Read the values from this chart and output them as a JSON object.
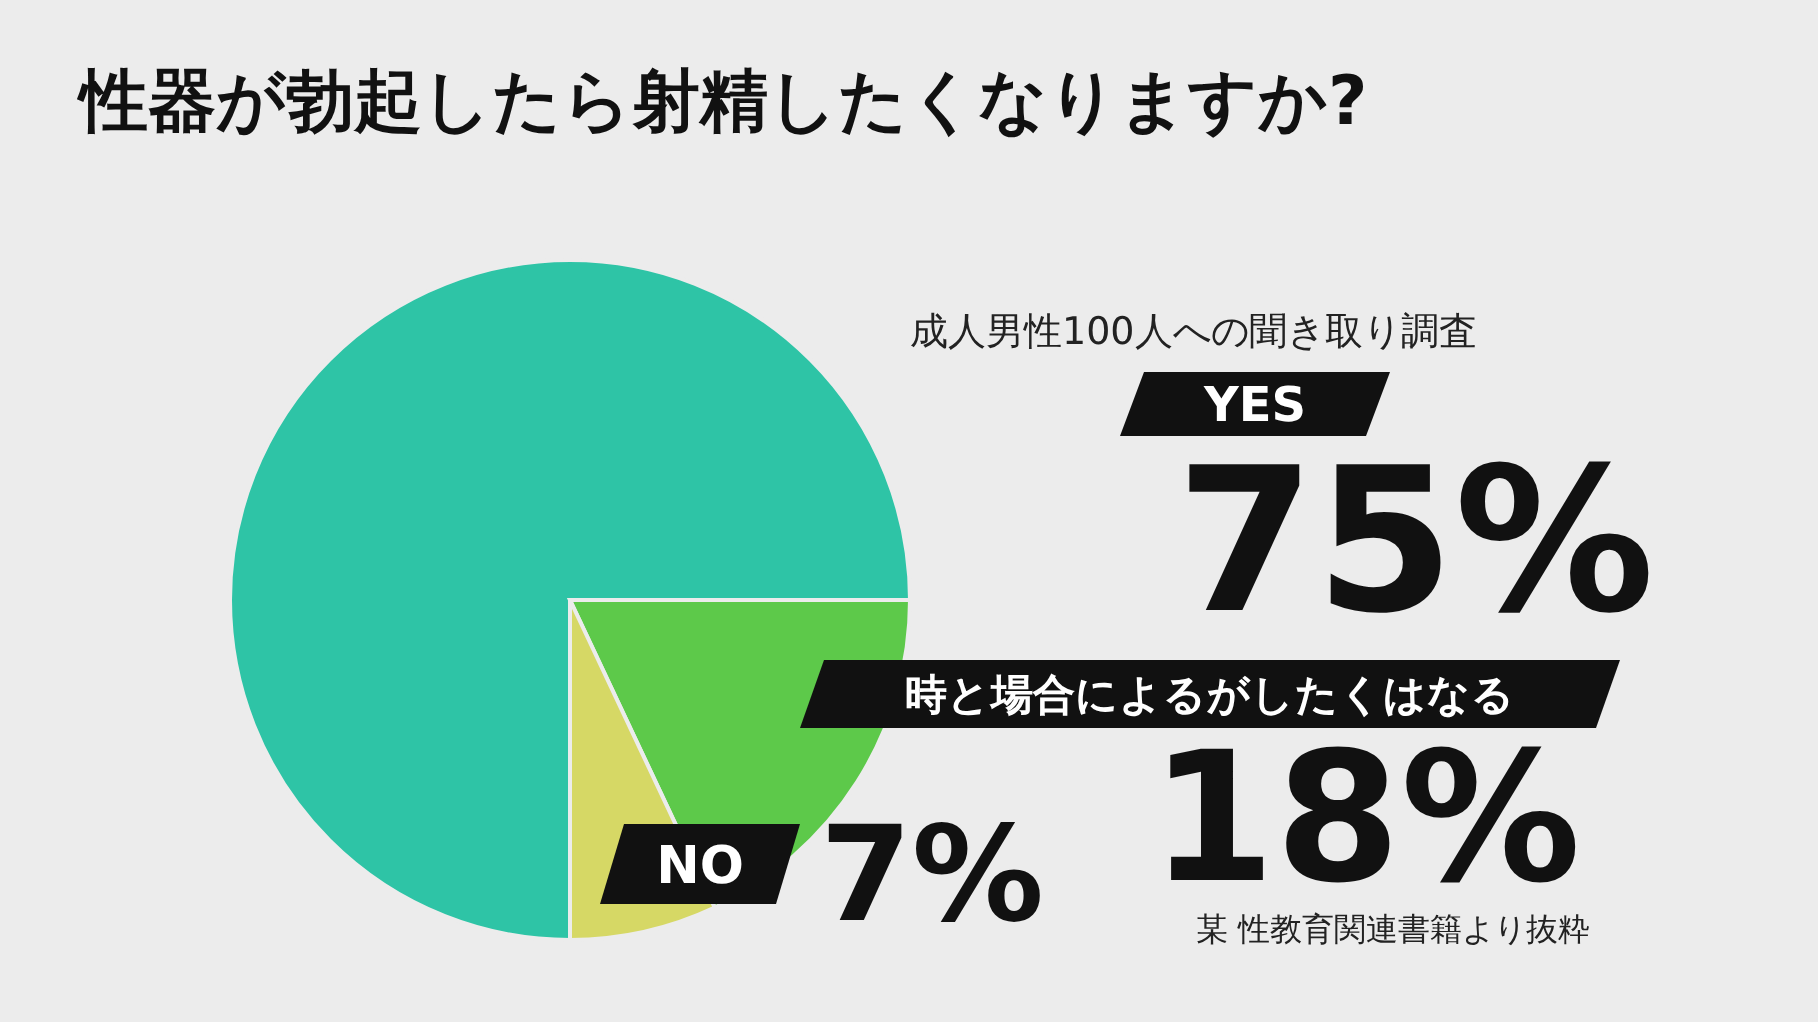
{
  "chart_data": {
    "type": "pie",
    "title": "性器が勃起したら射精したくなりますか?",
    "subtitle": "成人男性100人への聞き取り調査",
    "categories": [
      "YES",
      "時と場合によるがしたくはなる",
      "NO"
    ],
    "values": [
      75,
      18,
      7
    ],
    "colors": [
      "#2ec4a6",
      "#5dc94a",
      "#d6d865"
    ],
    "value_labels": [
      "75%",
      "18%",
      "7%"
    ],
    "annotations": [
      "某 性教育関連書籍より抜粋"
    ]
  }
}
